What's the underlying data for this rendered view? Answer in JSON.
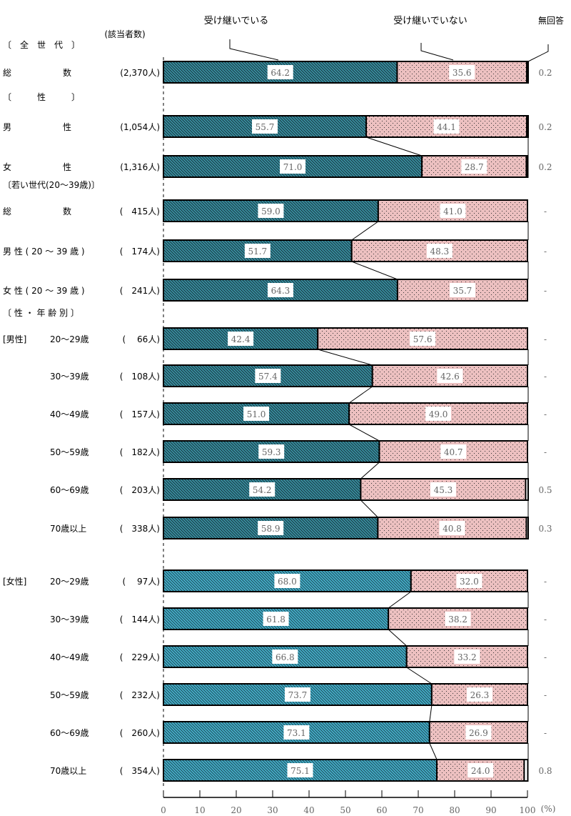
{
  "chart_data": {
    "type": "bar",
    "orientation": "horizontal",
    "stacked": true,
    "xlim": [
      0,
      100
    ],
    "x_ticks": [
      "0",
      "10",
      "20",
      "30",
      "40",
      "50",
      "60",
      "70",
      "80",
      "90",
      "100"
    ],
    "x_unit": "(%)",
    "count_header": "(該当者数)",
    "legend": [
      "受け継いでいる",
      "受け継いでいない",
      "無回答"
    ],
    "colors": {
      "inherited_male_total": "#2f7f8f",
      "inherited_female": "#3aa6c2",
      "not_inherited": "#e8b8b8",
      "no_answer": "#ffffff"
    },
    "sections": [
      {
        "label": "〔　全　世　代　〕",
        "row": 0
      },
      {
        "label": "〔　　　性　　　〕",
        "row": 1
      },
      {
        "label": "〔若い世代(20～39歳)〕",
        "row": 3
      },
      {
        "label": "〔 性 ・ 年 齢 別 〕",
        "row": 6
      }
    ],
    "groups": [
      {
        "label": "[男性]",
        "row": 6
      },
      {
        "label": "[女性]",
        "row": 12
      }
    ],
    "rows": [
      {
        "name": "総　　　　　　数",
        "n": "(2,370人)",
        "values": [
          "64.2",
          "35.6",
          "0.2"
        ]
      },
      {
        "name": "男　　　　　　性",
        "n": "(1,054人)",
        "values": [
          "55.7",
          "44.1",
          "0.2"
        ]
      },
      {
        "name": "女　　　　　　性",
        "n": "(1,316人)",
        "values": [
          "71.0",
          "28.7",
          "0.2"
        ]
      },
      {
        "name": "総　　　　　　数",
        "n": "(　415人)",
        "values": [
          "59.0",
          "41.0",
          "-"
        ]
      },
      {
        "name": "男 性 ( 20 ～ 39 歳 )",
        "n": "(　174人)",
        "values": [
          "51.7",
          "48.3",
          "-"
        ]
      },
      {
        "name": "女 性 ( 20 ～ 39 歳 )",
        "n": "(　241人)",
        "values": [
          "64.3",
          "35.7",
          "-"
        ]
      },
      {
        "name": "20～29歳",
        "n": "(　 66人)",
        "values": [
          "42.4",
          "57.6",
          "-"
        ]
      },
      {
        "name": "30～39歳",
        "n": "(　108人)",
        "values": [
          "57.4",
          "42.6",
          "-"
        ]
      },
      {
        "name": "40～49歳",
        "n": "(　157人)",
        "values": [
          "51.0",
          "49.0",
          "-"
        ]
      },
      {
        "name": "50～59歳",
        "n": "(　182人)",
        "values": [
          "59.3",
          "40.7",
          "-"
        ]
      },
      {
        "name": "60～69歳",
        "n": "(　203人)",
        "values": [
          "54.2",
          "45.3",
          "0.5"
        ]
      },
      {
        "name": "70歳以上",
        "n": "(　338人)",
        "values": [
          "58.9",
          "40.8",
          "0.3"
        ]
      },
      {
        "name": "20～29歳",
        "n": "(　 97人)",
        "values": [
          "68.0",
          "32.0",
          "-"
        ]
      },
      {
        "name": "30～39歳",
        "n": "(　144人)",
        "values": [
          "61.8",
          "38.2",
          "-"
        ]
      },
      {
        "name": "40～49歳",
        "n": "(　229人)",
        "values": [
          "66.8",
          "33.2",
          "-"
        ]
      },
      {
        "name": "50～59歳",
        "n": "(　232人)",
        "values": [
          "73.7",
          "26.3",
          "-"
        ]
      },
      {
        "name": "60～69歳",
        "n": "(　260人)",
        "values": [
          "73.1",
          "26.9",
          "-"
        ]
      },
      {
        "name": "70歳以上",
        "n": "(　354人)",
        "values": [
          "75.1",
          "24.0",
          "0.8"
        ]
      }
    ]
  }
}
